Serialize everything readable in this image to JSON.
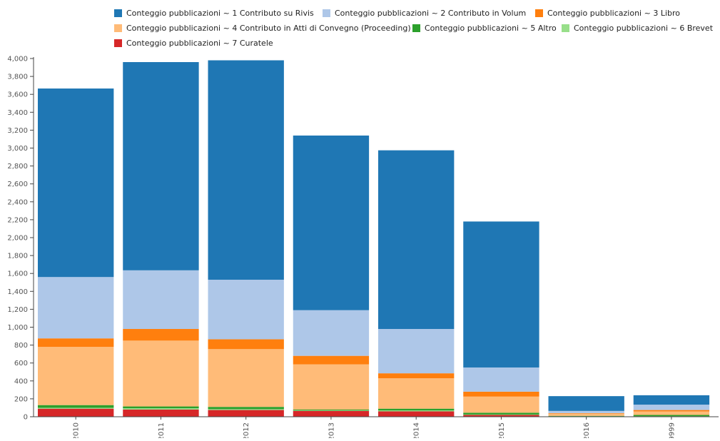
{
  "chart_data": {
    "type": "bar",
    "stacked": true,
    "categories": [
      "2010",
      "2011",
      "2012",
      "2013",
      "2014",
      "2015",
      "2016",
      "9999"
    ],
    "ylim": [
      0,
      4000
    ],
    "yticks": [
      0,
      200,
      400,
      600,
      800,
      1000,
      1200,
      1400,
      1600,
      1800,
      2000,
      2200,
      2400,
      2600,
      2800,
      3000,
      3200,
      3400,
      3600,
      3800,
      4000
    ],
    "grid": false,
    "legend_position": "top",
    "series": [
      {
        "name": "Conteggio pubblicazioni ~ 7 Curatele",
        "color": "#d62728",
        "values": [
          90,
          80,
          75,
          65,
          60,
          20,
          5,
          5
        ]
      },
      {
        "name": "Conteggio pubblicazioni ~ 6 Brevet",
        "color": "#98df8a",
        "values": [
          10,
          15,
          10,
          5,
          10,
          5,
          0,
          0
        ]
      },
      {
        "name": "Conteggio pubblicazioni ~ 5 Altro",
        "color": "#2ca02c",
        "values": [
          30,
          20,
          25,
          10,
          20,
          20,
          5,
          15
        ]
      },
      {
        "name": "Conteggio pubblicazioni ~ 4 Contributo in Atti di Convegno (Proceeding)",
        "color": "#ffbb78",
        "values": [
          650,
          735,
          645,
          505,
          340,
          180,
          25,
          40
        ]
      },
      {
        "name": "Conteggio pubblicazioni ~ 3 Libro",
        "color": "#ff7f0e",
        "values": [
          95,
          130,
          110,
          95,
          55,
          55,
          5,
          15
        ]
      },
      {
        "name": "Conteggio pubblicazioni ~ 2 Contributo in Volum",
        "color": "#aec7e8",
        "values": [
          685,
          655,
          665,
          510,
          495,
          270,
          25,
          60
        ]
      },
      {
        "name": "Conteggio pubblicazioni ~ 1 Contributo su Rivis",
        "color": "#1f77b4",
        "values": [
          2105,
          2325,
          2450,
          1950,
          1995,
          1630,
          165,
          105
        ]
      }
    ],
    "legend_order": [
      "Conteggio pubblicazioni ~ 1 Contributo su Rivis",
      "Conteggio pubblicazioni ~ 2 Contributo in Volum",
      "Conteggio pubblicazioni ~ 3 Libro",
      "Conteggio pubblicazioni ~ 4 Contributo in Atti di Convegno (Proceeding)",
      "Conteggio pubblicazioni ~ 5 Altro",
      "Conteggio pubblicazioni ~ 6 Brevet",
      "Conteggio pubblicazioni ~ 7 Curatele"
    ]
  }
}
